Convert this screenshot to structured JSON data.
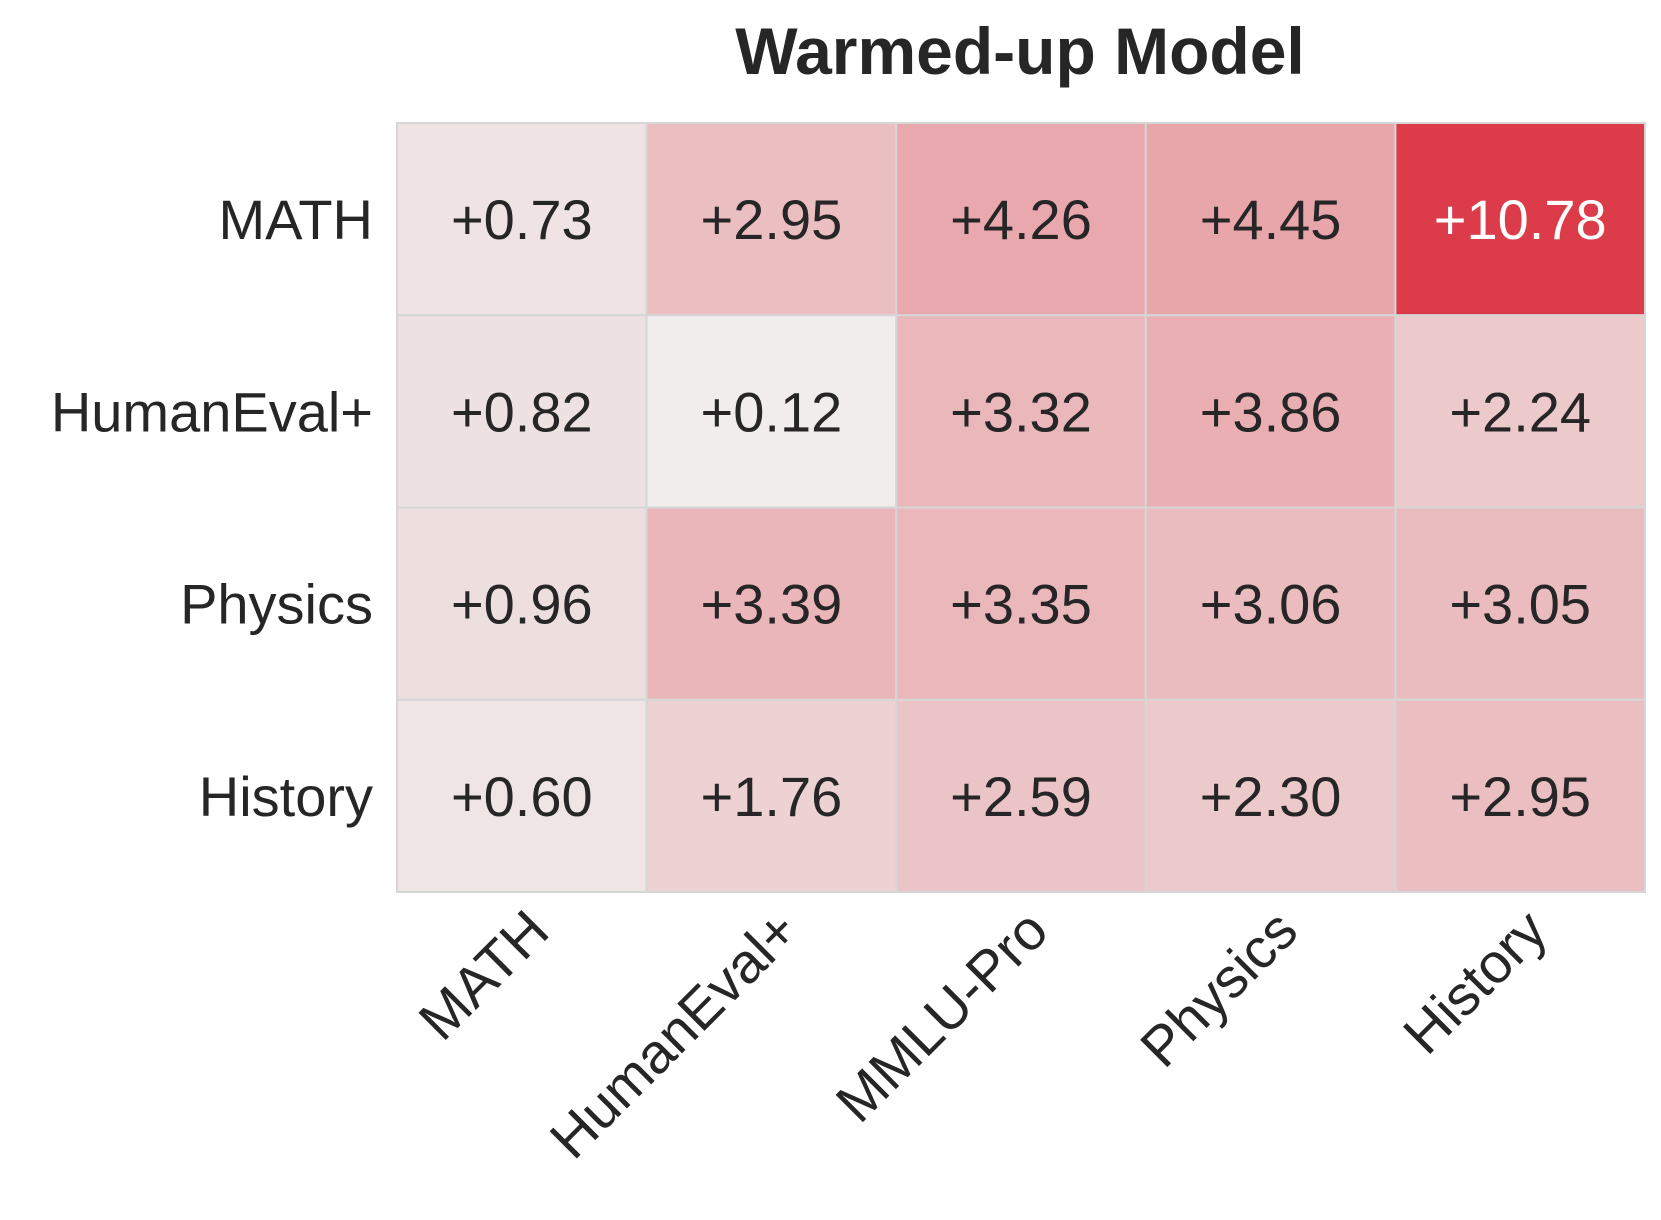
{
  "chart_data": {
    "type": "heatmap",
    "title": "Warmed-up Model",
    "rows": [
      "MATH",
      "HumanEval+",
      "Physics",
      "History"
    ],
    "columns": [
      "MATH",
      "HumanEval+",
      "MMLU-Pro",
      "Physics",
      "History"
    ],
    "values": [
      [
        0.73,
        2.95,
        4.26,
        4.45,
        10.78
      ],
      [
        0.82,
        0.12,
        3.32,
        3.86,
        2.24
      ],
      [
        0.96,
        3.39,
        3.35,
        3.06,
        3.05
      ],
      [
        0.6,
        1.76,
        2.59,
        2.3,
        2.95
      ]
    ],
    "labels": [
      [
        "+0.73",
        "+2.95",
        "+4.26",
        "+4.45",
        "+10.78"
      ],
      [
        "+0.82",
        "+0.12",
        "+3.32",
        "+3.86",
        "+2.24"
      ],
      [
        "+0.96",
        "+3.39",
        "+3.35",
        "+3.06",
        "+3.05"
      ],
      [
        "+0.60",
        "+1.76",
        "+2.59",
        "+2.30",
        "+2.95"
      ]
    ],
    "colorscale": {
      "low": "#f0efee",
      "high": "#dc3b4a",
      "vmin": 0,
      "vmax": 10.78
    },
    "text_color_dark": "#262626",
    "text_color_light": "#ffffff",
    "xlabel": "",
    "ylabel": ""
  }
}
